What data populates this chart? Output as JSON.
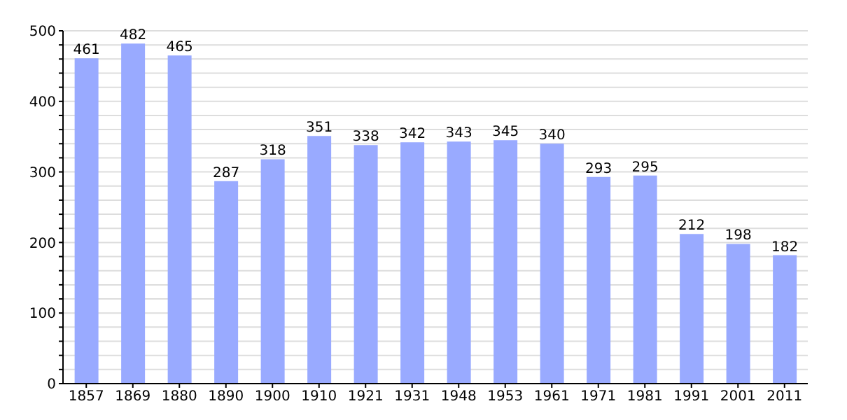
{
  "chart_data": {
    "type": "bar",
    "categories": [
      "1857",
      "1869",
      "1880",
      "1890",
      "1900",
      "1910",
      "1921",
      "1931",
      "1948",
      "1953",
      "1961",
      "1971",
      "1981",
      "1991",
      "2001",
      "2011"
    ],
    "values": [
      461,
      482,
      465,
      287,
      318,
      351,
      338,
      342,
      343,
      345,
      340,
      293,
      295,
      212,
      198,
      182
    ],
    "color": "#99aaff",
    "data_labels": true,
    "grid": "y",
    "ylim": [
      0,
      500
    ],
    "yticks": [
      0,
      {
        "value": 20,
        "label": null
      },
      {
        "value": 40,
        "label": null
      },
      {
        "value": 60,
        "label": null
      },
      {
        "value": 80,
        "label": null
      },
      100,
      {
        "value": 120,
        "label": null
      },
      {
        "value": 140,
        "label": null
      },
      {
        "value": 160,
        "label": null
      },
      {
        "value": 180,
        "label": null
      },
      200,
      {
        "value": 220,
        "label": null
      },
      {
        "value": 240,
        "label": null
      },
      {
        "value": 260,
        "label": null
      },
      {
        "value": 280,
        "label": null
      },
      300,
      {
        "value": 320,
        "label": null
      },
      {
        "value": 340,
        "label": null
      },
      {
        "value": 360,
        "label": null
      },
      {
        "value": 380,
        "label": null
      },
      400,
      {
        "value": 420,
        "label": null
      },
      {
        "value": 440,
        "label": null
      },
      {
        "value": 460,
        "label": null
      },
      {
        "value": 480,
        "label": null
      },
      500
    ]
  }
}
